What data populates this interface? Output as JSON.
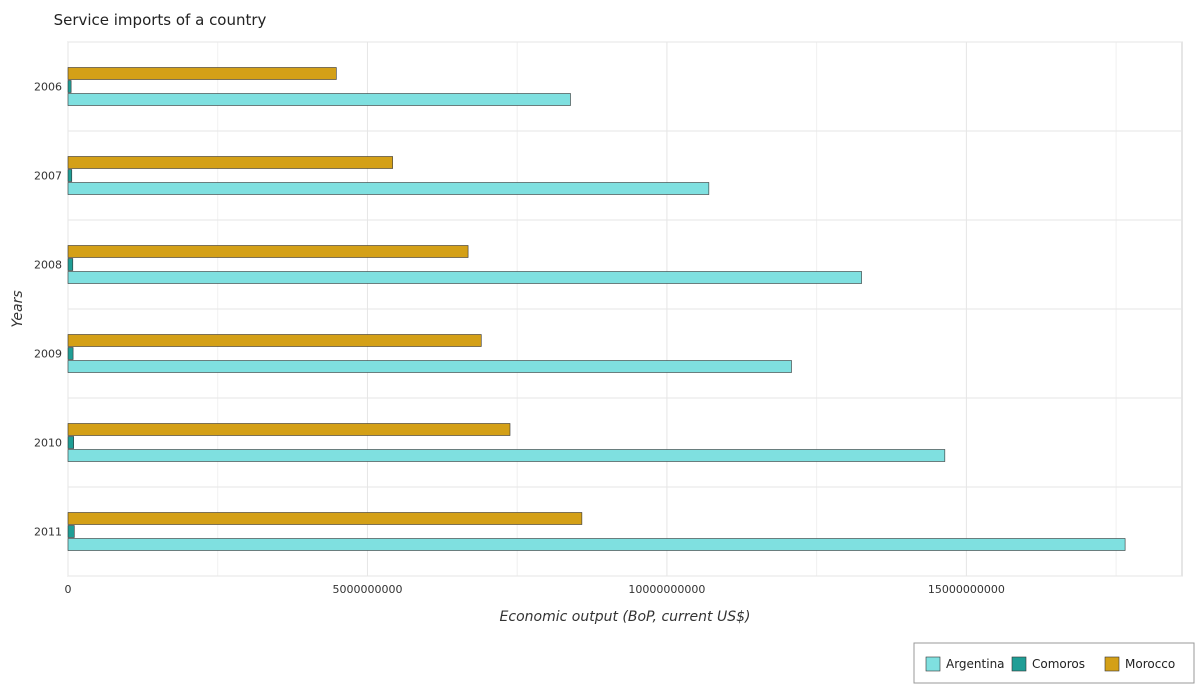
{
  "chart_data": {
    "type": "bar",
    "orientation": "horizontal",
    "title": "Service imports of a country",
    "xlabel": "Economic output (BoP, current US$)",
    "ylabel": "Years",
    "categories": [
      "2006",
      "2007",
      "2008",
      "2009",
      "2010",
      "2011"
    ],
    "xlim": [
      0,
      18600000000
    ],
    "x_ticks": [
      0,
      5000000000,
      10000000000,
      15000000000
    ],
    "x_tick_labels": [
      "0",
      "5000000000",
      "10000000000",
      "15000000000"
    ],
    "grid": true,
    "legend_position": "bottom-right",
    "series": [
      {
        "name": "Argentina",
        "color": "#7fe0e0",
        "values": [
          8390000000,
          10700000000,
          13250000000,
          12080000000,
          14640000000,
          17650000000
        ]
      },
      {
        "name": "Comoros",
        "color": "#1f9e96",
        "values": [
          52000000,
          63000000,
          80000000,
          85000000,
          95000000,
          105000000
        ]
      },
      {
        "name": "Morocco",
        "color": "#d4a017",
        "values": [
          4480000000,
          5420000000,
          6680000000,
          6900000000,
          7380000000,
          8580000000
        ]
      }
    ]
  }
}
